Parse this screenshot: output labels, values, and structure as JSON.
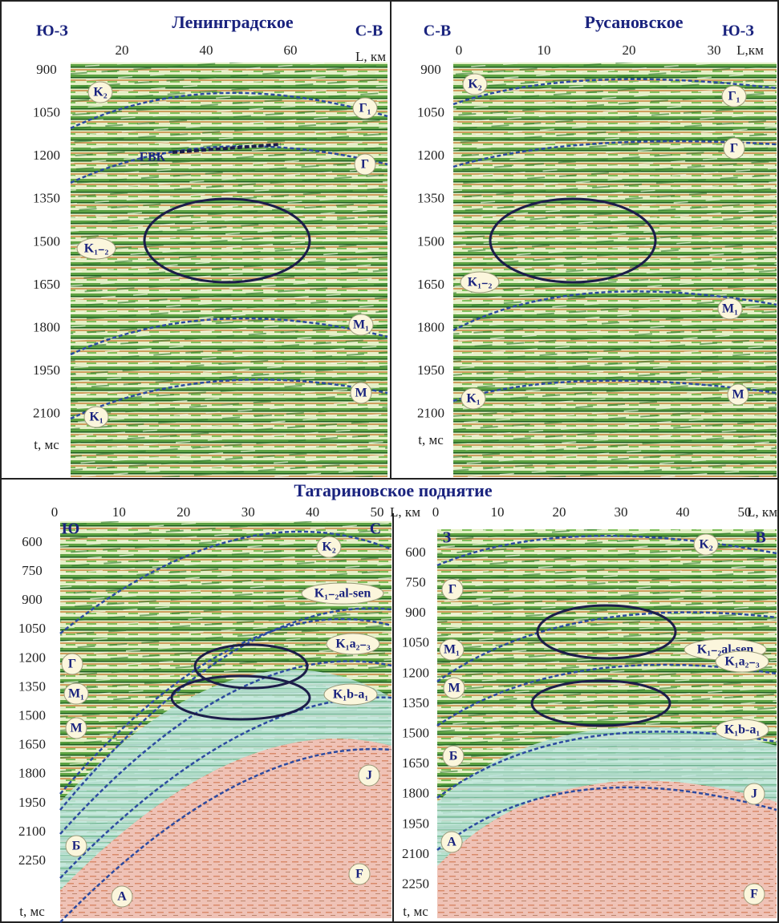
{
  "section_title": "Татариновское поднятие",
  "panels": [
    {
      "title": "Ленинградское",
      "left_direction": "Ю-З",
      "right_direction": "С-В",
      "x_ticks": [
        20,
        40,
        60
      ],
      "x_label": "L, км",
      "y_ticks": [
        900,
        1050,
        1200,
        1350,
        1500,
        1650,
        1800,
        1950,
        2100
      ],
      "y_label": "t, мс",
      "horizons": [
        "K₂",
        "Г₁",
        "ГВК",
        "Г",
        "K₁₋₂",
        "M₁",
        "M",
        "K₁"
      ]
    },
    {
      "title": "Русановское",
      "left_direction": "С-В",
      "right_direction": "Ю-З",
      "x_ticks": [
        0,
        10,
        20,
        30
      ],
      "x_label": "L,км",
      "y_ticks": [
        900,
        1050,
        1200,
        1350,
        1500,
        1650,
        1800,
        1950,
        2100
      ],
      "y_label": "t, мс",
      "horizons": [
        "K₂",
        "Г₁",
        "Г",
        "K₁₋₂",
        "M₁",
        "K₁",
        "M"
      ]
    },
    {
      "left_direction": "Ю",
      "right_direction": "С",
      "x_ticks": [
        0,
        10,
        20,
        30,
        40,
        50
      ],
      "x_label": "L, км",
      "y_ticks": [
        600,
        750,
        900,
        1050,
        1200,
        1350,
        1500,
        1650,
        1800,
        1950,
        2100,
        2250
      ],
      "y_label": "t, мс",
      "horizons": [
        "K₂",
        "K₁₋₂al-sen",
        "Г",
        "K₁a₂₋₃",
        "M₁",
        "K₁b-a₁",
        "M",
        "J",
        "Б",
        "F",
        "A"
      ]
    },
    {
      "left_direction": "З",
      "right_direction": "В",
      "x_ticks": [
        0,
        10,
        20,
        30,
        40,
        50
      ],
      "x_label": "L, км",
      "y_ticks": [
        600,
        750,
        900,
        1050,
        1200,
        1350,
        1500,
        1650,
        1800,
        1950,
        2100,
        2250
      ],
      "y_label": "t, мс",
      "horizons": [
        "K₂",
        "Г",
        "K₁₋₂al-sen",
        "M₁",
        "K₁a₂₋₃",
        "M",
        "K₁b-a₁",
        "Б",
        "J",
        "A",
        "F"
      ]
    }
  ]
}
